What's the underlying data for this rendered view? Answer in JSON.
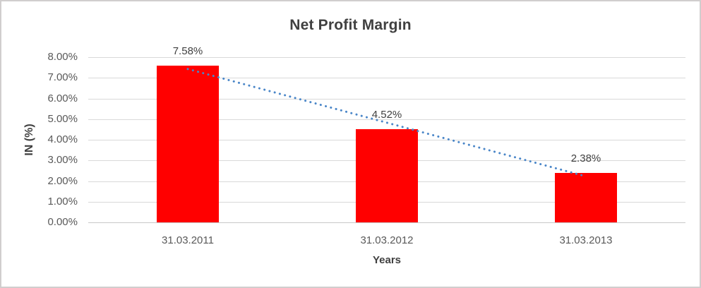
{
  "chart_data": {
    "type": "bar",
    "title": "Net Profit Margin",
    "xlabel": "Years",
    "ylabel": "IN (%)",
    "categories": [
      "31.03.2011",
      "31.03.2012",
      "31.03.2013"
    ],
    "values": [
      7.58,
      4.52,
      2.38
    ],
    "data_labels": [
      "7.58%",
      "4.52%",
      "2.38%"
    ],
    "yticks": [
      "0.00%",
      "1.00%",
      "2.00%",
      "3.00%",
      "4.00%",
      "5.00%",
      "6.00%",
      "7.00%",
      "8.00%"
    ],
    "ylim": [
      0,
      8
    ],
    "grid": "horizontal",
    "legend": "none",
    "bar_color": "#ff0000",
    "trendline": {
      "type": "linear",
      "style": "dotted",
      "color": "#4a86c8"
    },
    "colors": {
      "gridline": "#d9d9d9",
      "axis_line": "#c9c9c9",
      "tick_text": "#595959",
      "title_text": "#404040",
      "frame_border": "#d0cece"
    }
  }
}
